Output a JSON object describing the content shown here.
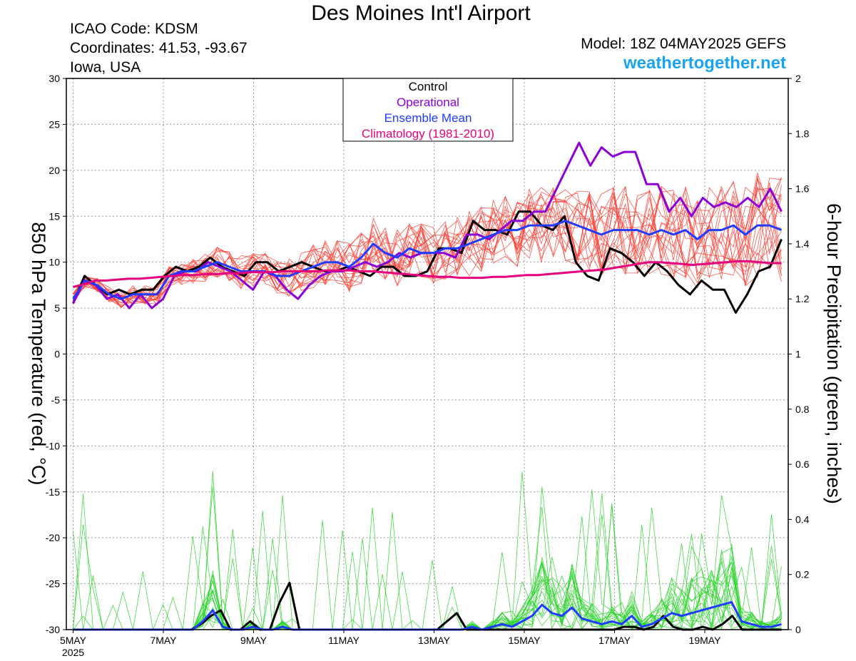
{
  "header": {
    "title": "Des Moines Int'l Airport",
    "icao": "ICAO Code: KDSM",
    "coordinates": "Coordinates: 41.53, -93.67",
    "location": "Iowa, USA",
    "model": "Model: 18Z 04MAY2025 GEFS",
    "site": "weathertogether.net"
  },
  "chart_data": {
    "type": "line",
    "y_left_label": "850 hPa Temperature (red, °C)",
    "y_right_label": "6-hour Precipitation (green, inches)",
    "ylim_left": [
      -30,
      30
    ],
    "ylim_right": [
      0,
      2
    ],
    "y_left_ticks": [
      30,
      25,
      20,
      15,
      10,
      5,
      0,
      -5,
      -10,
      -15,
      -20,
      -25,
      -30
    ],
    "y_right_ticks": [
      2,
      1.8,
      1.6,
      1.4,
      1.2,
      1,
      0.8,
      0.6,
      0.4,
      0.2,
      0
    ],
    "x_ticks": [
      {
        "day": 4.75,
        "label": "5MAY",
        "sub": "2025"
      },
      {
        "day": 6.75,
        "label": "7MAY"
      },
      {
        "day": 8.75,
        "label": "9MAY"
      },
      {
        "day": 10.75,
        "label": "11MAY"
      },
      {
        "day": 12.75,
        "label": "13MAY"
      },
      {
        "day": 14.75,
        "label": "15MAY"
      },
      {
        "day": 16.75,
        "label": "17MAY"
      },
      {
        "day": 18.75,
        "label": "19MAY"
      }
    ],
    "x_range_days": [
      4.6,
      20.6
    ],
    "grid": true,
    "legend_placement": "top-center",
    "legend": [
      {
        "name": "Control",
        "color": "#000000"
      },
      {
        "name": "Operational",
        "color": "#8b00d6"
      },
      {
        "name": "Ensemble Mean",
        "color": "#1f3cff"
      },
      {
        "name": "Climatology (1981-2010)",
        "color": "#e6007e"
      }
    ],
    "colors": {
      "members_temp": "#ff3b30",
      "members_precip": "#28d228"
    },
    "series": [
      {
        "name": "Control",
        "kind": "temp",
        "color": "#000000",
        "width": 3,
        "values": [
          5.5,
          8.5,
          7.5,
          6.5,
          7,
          6.5,
          7,
          7,
          8.5,
          9.5,
          9,
          9.5,
          10.5,
          9.5,
          9,
          8.5,
          10,
          10,
          9,
          9.5,
          10,
          9.5,
          9,
          9,
          9.5,
          9,
          8.5,
          9.5,
          9.5,
          8.5,
          8.5,
          9,
          11.5,
          11.5,
          11,
          14.5,
          13.5,
          13.5,
          13,
          15.5,
          15.5,
          14,
          13.5,
          15,
          10,
          8.5,
          8,
          11.5,
          11,
          10,
          8.5,
          10,
          9,
          7.5,
          6.5,
          8,
          7,
          7,
          4.5,
          6.5,
          9,
          9.5,
          12.5
        ]
      },
      {
        "name": "Operational",
        "kind": "temp",
        "color": "#8b00d6",
        "width": 3,
        "values": [
          5.5,
          8,
          7.5,
          6,
          6.5,
          5,
          6.5,
          5,
          6,
          8.5,
          9,
          9,
          10,
          9.5,
          9,
          8,
          7,
          9,
          8.5,
          7,
          6,
          7.5,
          8.5,
          9,
          9,
          9.5,
          10,
          9.5,
          10,
          11,
          10.5,
          11,
          11,
          11,
          10.5,
          13,
          13,
          12.5,
          13.5,
          14.5,
          14.5,
          15.5,
          15.5,
          18,
          20.5,
          23,
          20.5,
          22.5,
          21.5,
          22,
          22,
          18.5,
          18.5,
          15.5,
          17,
          15,
          17,
          16,
          16.5,
          16,
          17,
          16,
          18,
          15.5
        ]
      },
      {
        "name": "Ensemble Mean",
        "kind": "temp",
        "color": "#1f3cff",
        "width": 3,
        "values": [
          6,
          8,
          7.5,
          6.5,
          6,
          6.5,
          6.5,
          6.5,
          8.5,
          9,
          9,
          9.5,
          10,
          9.5,
          9,
          9,
          9,
          8.5,
          8.5,
          9,
          9.5,
          10,
          10,
          9.5,
          10.5,
          12,
          11,
          10.5,
          11.5,
          11,
          11,
          11.5,
          11.5,
          12,
          12.5,
          13,
          13.5,
          13.5,
          14,
          14,
          14,
          14.5,
          14,
          13.5,
          13,
          13.5,
          13.5,
          13.5,
          13,
          13.5,
          13,
          13.5,
          12.5,
          13.5,
          13.5,
          14,
          13,
          14,
          14,
          13.5
        ]
      },
      {
        "name": "Climatology (1981-2010)",
        "kind": "temp",
        "color": "#e6007e",
        "width": 3,
        "values": [
          7.3,
          7.6,
          8,
          8,
          8.1,
          8.2,
          8.2,
          8.3,
          8.4,
          8.5,
          8.6,
          8.6,
          8.7,
          8.7,
          8.8,
          8.8,
          8.9,
          8.9,
          8.9,
          9,
          9,
          9,
          9,
          9.1,
          9.1,
          9.1,
          9,
          9,
          8.9,
          8.8,
          8.7,
          8.6,
          8.5,
          8.4,
          8.4,
          8.3,
          8.3,
          8.3,
          8.4,
          8.4,
          8.5,
          8.6,
          8.6,
          8.7,
          8.8,
          8.9,
          9,
          9.1,
          9.2,
          9.4,
          9.6,
          9.8,
          10,
          10,
          9.9,
          9.8,
          9.7,
          9.8,
          9.9,
          10,
          10.1,
          10.1,
          10,
          9.9,
          9.9
        ]
      },
      {
        "name": "Control precip",
        "kind": "precip",
        "color": "#000000",
        "width": 3,
        "values": [
          0,
          0,
          0,
          0,
          0,
          0,
          0,
          0,
          0,
          0,
          0,
          0,
          0,
          0.02,
          0.05,
          0.07,
          0,
          0,
          0.03,
          0,
          0,
          0.1,
          0.17,
          0,
          0,
          0,
          0,
          0,
          0,
          0,
          0,
          0,
          0,
          0,
          0,
          0,
          0,
          0,
          0.03,
          0.06,
          0,
          0,
          0,
          0,
          0,
          0,
          0,
          0,
          0,
          0,
          0,
          0,
          0,
          0,
          0,
          0,
          0.01,
          0.01,
          0,
          0.01,
          0.05,
          0.01,
          0,
          0,
          0.01,
          0,
          0.02,
          0.05,
          0,
          0,
          0,
          0,
          0
        ]
      },
      {
        "name": "Ensemble Mean precip",
        "kind": "precip",
        "color": "#1f3cff",
        "width": 3,
        "values": [
          0,
          0,
          0,
          0,
          0,
          0,
          0,
          0,
          0,
          0,
          0,
          0,
          0,
          0.03,
          0.07,
          0.01,
          0,
          0,
          0.01,
          0,
          0,
          0.01,
          0,
          0,
          0,
          0,
          0,
          0,
          0,
          0,
          0,
          0,
          0,
          0,
          0,
          0,
          0,
          0,
          0,
          0,
          0.01,
          0,
          0.01,
          0.02,
          0.01,
          0.03,
          0.05,
          0.09,
          0.06,
          0.05,
          0.08,
          0.04,
          0.03,
          0.02,
          0.03,
          0.02,
          0.05,
          0.01,
          0.02,
          0.04,
          0.06,
          0.05,
          0.06,
          0.07,
          0.08,
          0.09,
          0.1,
          0.03,
          0.02,
          0.01,
          0.01,
          0.02
        ]
      }
    ]
  }
}
